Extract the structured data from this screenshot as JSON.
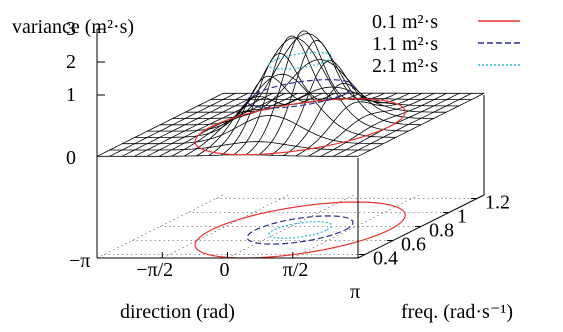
{
  "chart_data": {
    "type": "surface3d",
    "zlabel": "variance (m²·s)",
    "xlabel": "direction (rad)",
    "ylabel": "freq. (rad·s⁻¹)",
    "x_ticks": [
      "−π",
      "−π/2",
      "0",
      "π/2",
      "π"
    ],
    "x_tick_values": [
      -3.14159,
      -1.5708,
      0,
      1.5708,
      3.14159
    ],
    "y_ticks": [
      "0.4",
      "0.6",
      "0.8",
      "1",
      "1.2"
    ],
    "y_tick_values": [
      0.4,
      0.6,
      0.8,
      1.0,
      1.2
    ],
    "z_ticks": [
      "0",
      "1",
      "2",
      "3"
    ],
    "z_tick_values": [
      0,
      1,
      2,
      3
    ],
    "xlim": [
      -3.14159,
      3.14159
    ],
    "ylim": [
      0.35,
      1.25
    ],
    "zlim": [
      0,
      3
    ],
    "surface": {
      "function": "gaussian peak",
      "peak_value": 3.0,
      "peak_x": 0.4,
      "peak_y": 0.75,
      "spread_x": 0.75,
      "spread_y": 0.14,
      "background": 0.05,
      "grid_x_count": 22,
      "grid_y_count": 11
    },
    "contour_levels": [
      {
        "level": 0.1,
        "label": "0.1 m²·s",
        "color": "#e8372f",
        "dash": "solid"
      },
      {
        "level": 1.1,
        "label": "1.1 m²·s",
        "color": "#2b2f8f",
        "dash": "dashed"
      },
      {
        "level": 2.1,
        "label": "2.1 m²·s",
        "color": "#29b8d8",
        "dash": "dotted"
      }
    ],
    "legend_position": "top-right",
    "grid": true
  }
}
